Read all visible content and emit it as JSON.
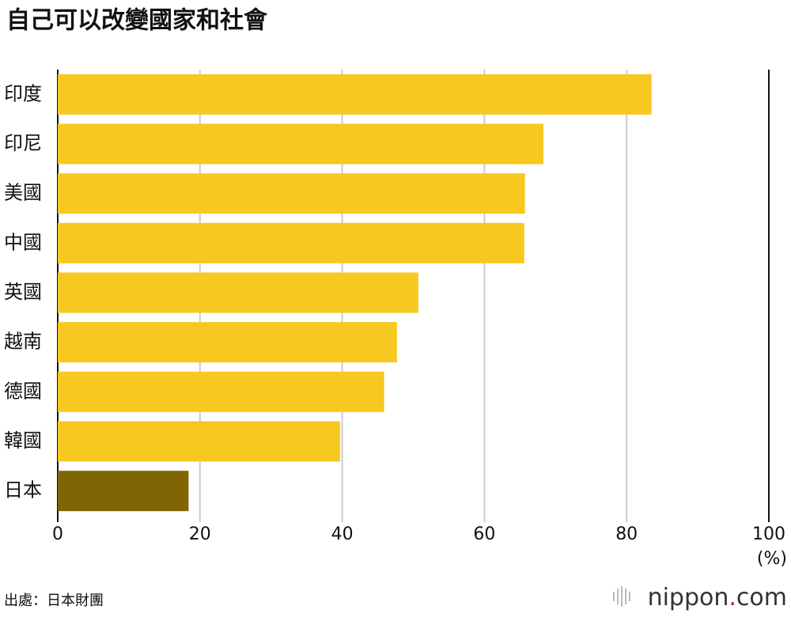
{
  "chart_data": {
    "type": "bar",
    "orientation": "horizontal",
    "title": "自己可以改變國家和社會",
    "categories": [
      "印度",
      "印尼",
      "美國",
      "中國",
      "英國",
      "越南",
      "德國",
      "韓國",
      "日本"
    ],
    "values": [
      83.5,
      68.3,
      65.7,
      65.6,
      50.7,
      47.7,
      45.9,
      39.7,
      18.4
    ],
    "colors": [
      "#f7c820",
      "#f7c820",
      "#f7c820",
      "#f7c820",
      "#f7c820",
      "#f7c820",
      "#f7c820",
      "#f7c820",
      "#806505"
    ],
    "xlim": [
      0,
      100
    ],
    "xticks": [
      0,
      20,
      40,
      60,
      80,
      100
    ],
    "grid": true,
    "unit": "(%)",
    "source": "出處：日本財團",
    "logo": [
      "nippon",
      ".",
      "com"
    ]
  }
}
